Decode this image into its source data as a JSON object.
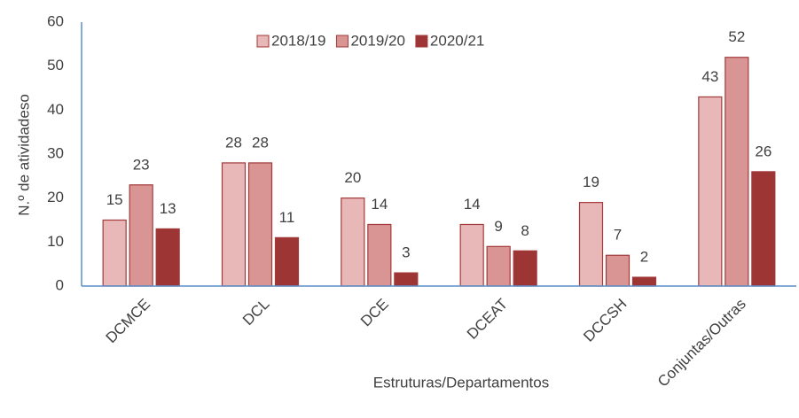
{
  "chart_data": {
    "type": "bar",
    "xlabel": "Estruturas/Departamentos",
    "ylabel": "N.º de atividadeso",
    "categories": [
      "DCMCE",
      "DCL",
      "DCE",
      "DCEAT",
      "DCCSH",
      "Conjuntas/Outras"
    ],
    "series": [
      {
        "name": "2018/19",
        "color": "#e8b7b7",
        "values": [
          15,
          28,
          20,
          14,
          19,
          43
        ]
      },
      {
        "name": "2019/20",
        "color": "#d99494",
        "values": [
          23,
          28,
          14,
          9,
          7,
          52
        ]
      },
      {
        "name": "2020/21",
        "color": "#9e3535",
        "values": [
          13,
          11,
          3,
          8,
          2,
          26
        ]
      }
    ],
    "ylim": [
      0,
      60
    ],
    "yticks": [
      0,
      10,
      20,
      30,
      40,
      50,
      60
    ],
    "grid": false,
    "legend": "top"
  }
}
